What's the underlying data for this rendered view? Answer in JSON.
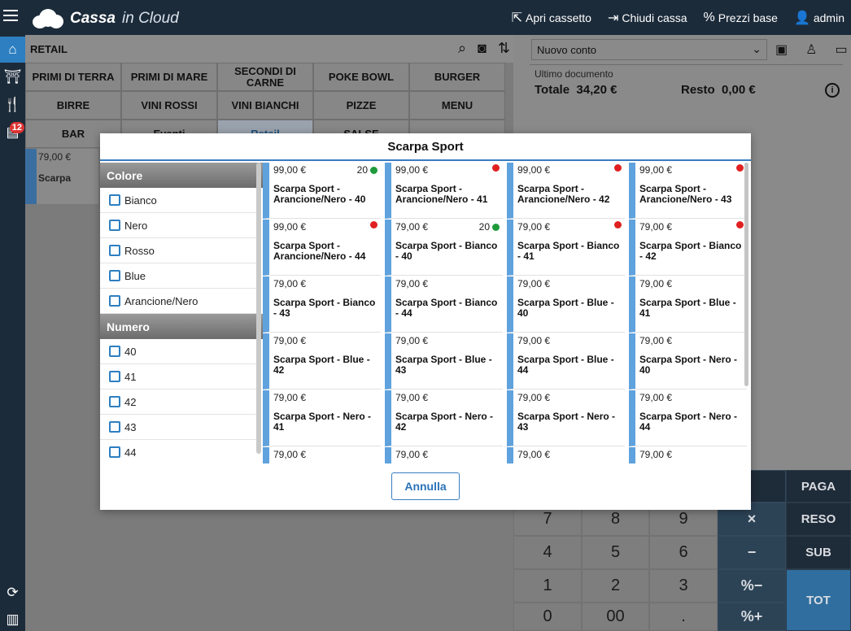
{
  "app": {
    "brand_main": "Cassa",
    "brand_sub": "in Cloud"
  },
  "top_actions": [
    {
      "label": "Apri cassetto",
      "icon": "open-drawer-icon"
    },
    {
      "label": "Chiudi cassa",
      "icon": "close-register-icon"
    },
    {
      "label": "Prezzi base",
      "icon": "percent-icon"
    },
    {
      "label": "admin",
      "icon": "user-icon"
    }
  ],
  "rail": {
    "badge": "12"
  },
  "main": {
    "section_title": "RETAIL",
    "categories": [
      "PRIMI DI TERRA",
      "PRIMI DI MARE",
      "SECONDI DI CARNE",
      "POKE BOWL",
      "BURGER",
      "BIRRE",
      "VINI ROSSI",
      "VINI BIANCHI",
      "PIZZE",
      "MENU",
      "BAR",
      "Eventi",
      "Retail",
      "SALSE",
      ""
    ],
    "preview_price": "79,00 €",
    "preview_name": "Scarpa"
  },
  "right": {
    "account_select": "Nuovo conto",
    "doc_label": "Ultimo documento",
    "total_label": "Totale",
    "total_value": "34,20 €",
    "change_label": "Resto",
    "change_value": "0,00 €"
  },
  "keypad": {
    "digits": [
      "7",
      "8",
      "9",
      "4",
      "5",
      "6",
      "1",
      "2",
      "3",
      "0",
      "00",
      "."
    ],
    "functions": [
      "PAGA",
      "RESO",
      "SUB",
      "TOT"
    ],
    "operators": [
      "×",
      "−",
      "%−",
      "%+"
    ]
  },
  "modal": {
    "title": "Scarpa Sport",
    "filter_groups": [
      {
        "name": "Colore",
        "options": [
          "Bianco",
          "Nero",
          "Rosso",
          "Blue",
          "Arancione/Nero"
        ]
      },
      {
        "name": "Numero",
        "options": [
          "40",
          "41",
          "42",
          "43",
          "44"
        ]
      }
    ],
    "products": [
      {
        "price": "99,00 €",
        "name": "Scarpa Sport - Arancione/Nero - 40",
        "stock": "20",
        "status": "green"
      },
      {
        "price": "99,00 €",
        "name": "Scarpa Sport - Arancione/Nero - 41",
        "stock": "",
        "status": "red"
      },
      {
        "price": "99,00 €",
        "name": "Scarpa Sport - Arancione/Nero - 42",
        "stock": "",
        "status": "red"
      },
      {
        "price": "99,00 €",
        "name": "Scarpa Sport - Arancione/Nero - 43",
        "stock": "",
        "status": "red"
      },
      {
        "price": "99,00 €",
        "name": "Scarpa Sport - Arancione/Nero - 44",
        "stock": "",
        "status": "red"
      },
      {
        "price": "79,00 €",
        "name": "Scarpa Sport - Bianco - 40",
        "stock": "20",
        "status": "green"
      },
      {
        "price": "79,00 €",
        "name": "Scarpa Sport - Bianco - 41",
        "stock": "",
        "status": "red"
      },
      {
        "price": "79,00 €",
        "name": "Scarpa Sport - Bianco - 42",
        "stock": "",
        "status": "red"
      },
      {
        "price": "79,00 €",
        "name": "Scarpa Sport - Bianco - 43",
        "stock": "",
        "status": ""
      },
      {
        "price": "79,00 €",
        "name": "Scarpa Sport - Bianco - 44",
        "stock": "",
        "status": ""
      },
      {
        "price": "79,00 €",
        "name": "Scarpa Sport - Blue - 40",
        "stock": "",
        "status": ""
      },
      {
        "price": "79,00 €",
        "name": "Scarpa Sport - Blue - 41",
        "stock": "",
        "status": ""
      },
      {
        "price": "79,00 €",
        "name": "Scarpa Sport - Blue - 42",
        "stock": "",
        "status": ""
      },
      {
        "price": "79,00 €",
        "name": "Scarpa Sport - Blue - 43",
        "stock": "",
        "status": ""
      },
      {
        "price": "79,00 €",
        "name": "Scarpa Sport - Blue - 44",
        "stock": "",
        "status": ""
      },
      {
        "price": "79,00 €",
        "name": "Scarpa Sport - Nero - 40",
        "stock": "",
        "status": ""
      },
      {
        "price": "79,00 €",
        "name": "Scarpa Sport - Nero - 41",
        "stock": "",
        "status": ""
      },
      {
        "price": "79,00 €",
        "name": "Scarpa Sport - Nero - 42",
        "stock": "",
        "status": ""
      },
      {
        "price": "79,00 €",
        "name": "Scarpa Sport - Nero - 43",
        "stock": "",
        "status": ""
      },
      {
        "price": "79,00 €",
        "name": "Scarpa Sport - Nero - 44",
        "stock": "",
        "status": ""
      },
      {
        "price": "79,00 €",
        "name": "",
        "stock": "",
        "status": ""
      },
      {
        "price": "79,00 €",
        "name": "",
        "stock": "",
        "status": ""
      },
      {
        "price": "79,00 €",
        "name": "",
        "stock": "",
        "status": ""
      },
      {
        "price": "79,00 €",
        "name": "",
        "stock": "",
        "status": ""
      }
    ],
    "cancel_label": "Annulla"
  },
  "colors": {
    "accent": "#2d7fc1",
    "topbar": "#1c2b3a",
    "stock_ok": "#1f9a3a",
    "stock_out": "#e02020"
  }
}
